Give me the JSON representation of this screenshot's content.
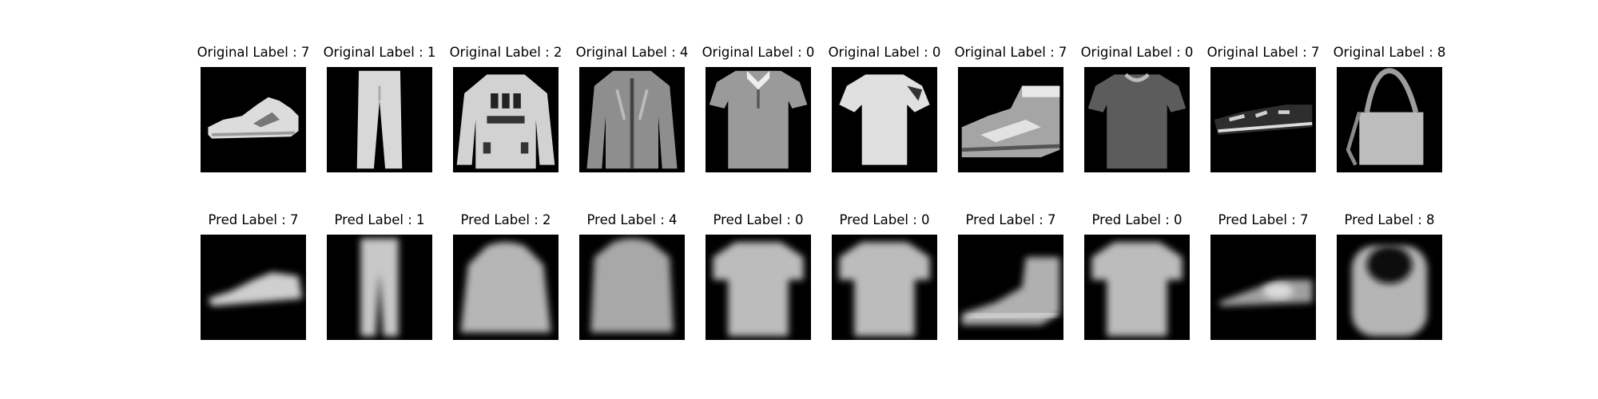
{
  "rows": [
    {
      "name": "original",
      "items": [
        {
          "title": "Original Label : 7",
          "label": 7,
          "icon": "sneaker"
        },
        {
          "title": "Original Label : 1",
          "label": 1,
          "icon": "trouser"
        },
        {
          "title": "Original Label : 2",
          "label": 2,
          "icon": "pullover"
        },
        {
          "title": "Original Label : 4",
          "label": 4,
          "icon": "coat"
        },
        {
          "title": "Original Label : 0",
          "label": 0,
          "icon": "polo-shirt"
        },
        {
          "title": "Original Label : 0",
          "label": 0,
          "icon": "tshirt"
        },
        {
          "title": "Original Label : 7",
          "label": 7,
          "icon": "high-top-sneaker"
        },
        {
          "title": "Original Label : 0",
          "label": 0,
          "icon": "tshirt-dark"
        },
        {
          "title": "Original Label : 7",
          "label": 7,
          "icon": "low-sneaker"
        },
        {
          "title": "Original Label : 8",
          "label": 8,
          "icon": "bag"
        }
      ]
    },
    {
      "name": "prediction",
      "items": [
        {
          "title": "Pred Label : 7",
          "label": 7,
          "icon": "sneaker-blurred"
        },
        {
          "title": "Pred Label : 1",
          "label": 1,
          "icon": "trouser-blurred"
        },
        {
          "title": "Pred Label : 2",
          "label": 2,
          "icon": "pullover-blurred"
        },
        {
          "title": "Pred Label : 4",
          "label": 4,
          "icon": "coat-blurred"
        },
        {
          "title": "Pred Label : 0",
          "label": 0,
          "icon": "shirt-blurred"
        },
        {
          "title": "Pred Label : 0",
          "label": 0,
          "icon": "shirt-blurred"
        },
        {
          "title": "Pred Label : 7",
          "label": 7,
          "icon": "boot-blurred"
        },
        {
          "title": "Pred Label : 0",
          "label": 0,
          "icon": "shirt-blurred"
        },
        {
          "title": "Pred Label : 7",
          "label": 7,
          "icon": "low-sneaker-blurred"
        },
        {
          "title": "Pred Label : 8",
          "label": 8,
          "icon": "bag-blurred"
        }
      ]
    }
  ]
}
